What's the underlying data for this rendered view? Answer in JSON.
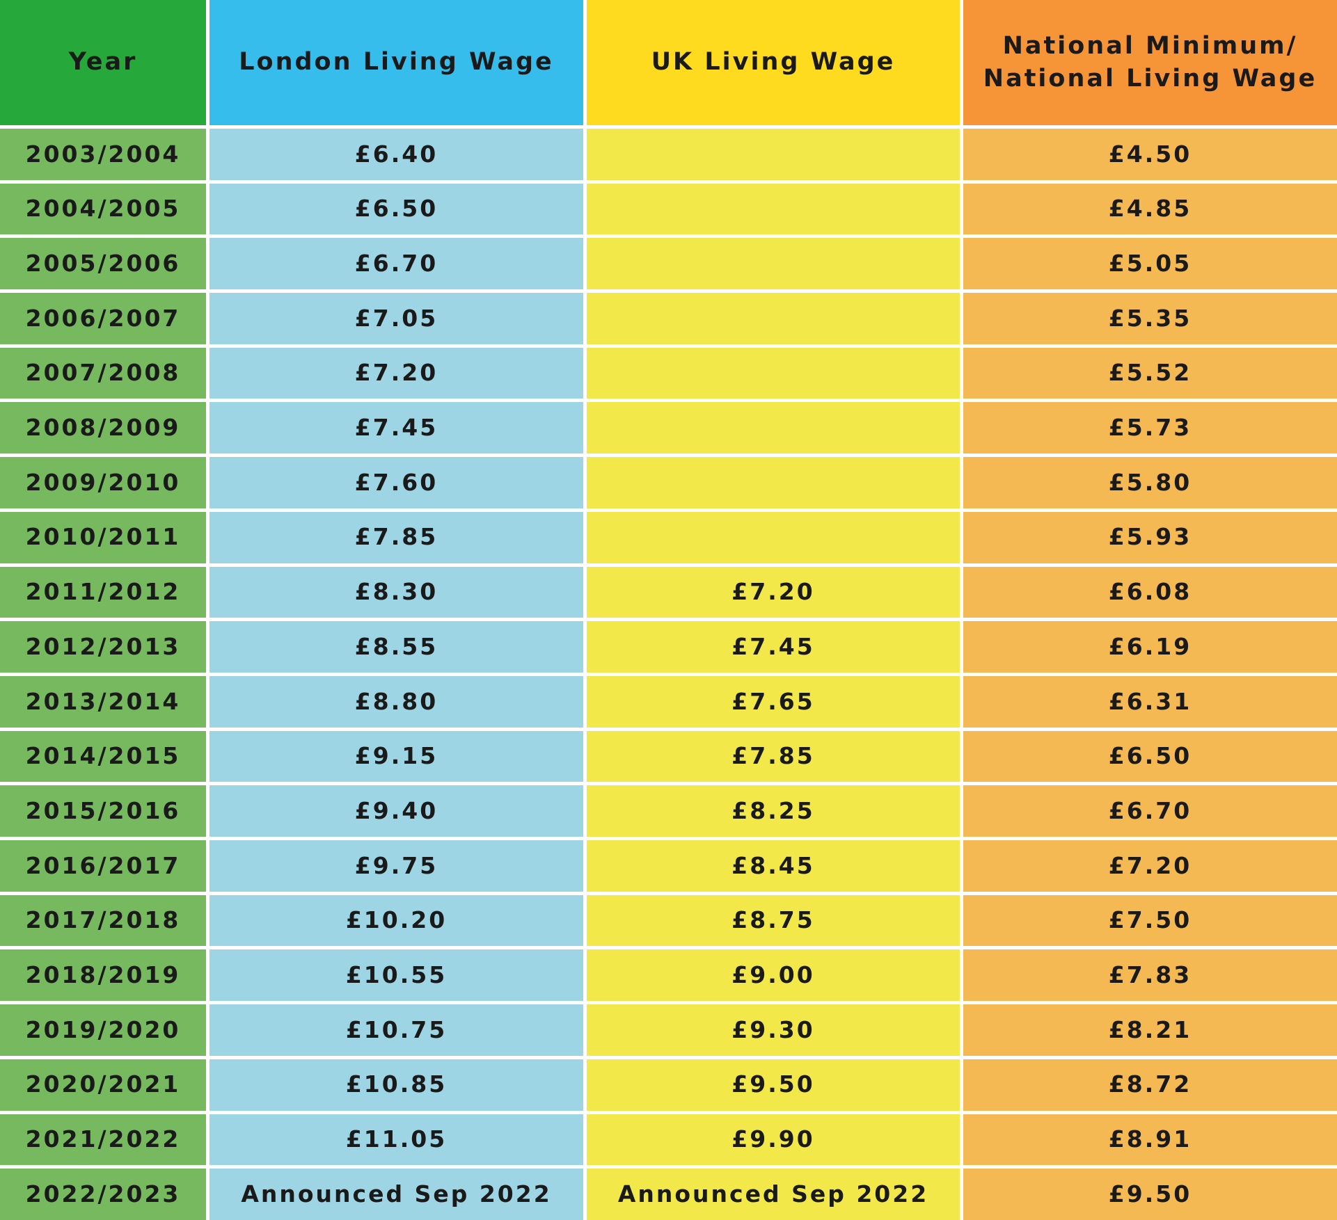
{
  "table": {
    "header": [
      "Year",
      "London Living Wage",
      "UK Living Wage",
      "National Minimum/\nNational Living Wage"
    ],
    "rows": [
      [
        "2003/2004",
        "£6.40",
        null,
        "£4.50"
      ],
      [
        "2004/2005",
        "£6.50",
        null,
        "£4.85"
      ],
      [
        "2005/2006",
        "£6.70",
        null,
        "£5.05"
      ],
      [
        "2006/2007",
        "£7.05",
        null,
        "£5.35"
      ],
      [
        "2007/2008",
        "£7.20",
        null,
        "£5.52"
      ],
      [
        "2008/2009",
        "£7.45",
        null,
        "£5.73"
      ],
      [
        "2009/2010",
        "£7.60",
        null,
        "£5.80"
      ],
      [
        "2010/2011",
        "£7.85",
        null,
        "£5.93"
      ],
      [
        "2011/2012",
        "£8.30",
        "£7.20",
        "£6.08"
      ],
      [
        "2012/2013",
        "£8.55",
        "£7.45",
        "£6.19"
      ],
      [
        "2013/2014",
        "£8.80",
        "£7.65",
        "£6.31"
      ],
      [
        "2014/2015",
        "£9.15",
        "£7.85",
        "£6.50"
      ],
      [
        "2015/2016",
        "£9.40",
        "£8.25",
        "£6.70"
      ],
      [
        "2016/2017",
        "£9.75",
        "£8.45",
        "£7.20"
      ],
      [
        "2017/2018",
        "£10.20",
        "£8.75",
        "£7.50"
      ],
      [
        "2018/2019",
        "£10.55",
        "£9.00",
        "£7.83"
      ],
      [
        "2019/2020",
        "£10.75",
        "£9.30",
        "£8.21"
      ],
      [
        "2020/2021",
        "£10.85",
        "£9.50",
        "£8.72"
      ],
      [
        "2021/2022",
        "£11.05",
        "£9.90",
        "£8.91"
      ],
      [
        "2022/2023",
        "Announced Sep 2022",
        "Announced Sep 2022",
        "£9.50"
      ]
    ]
  }
}
